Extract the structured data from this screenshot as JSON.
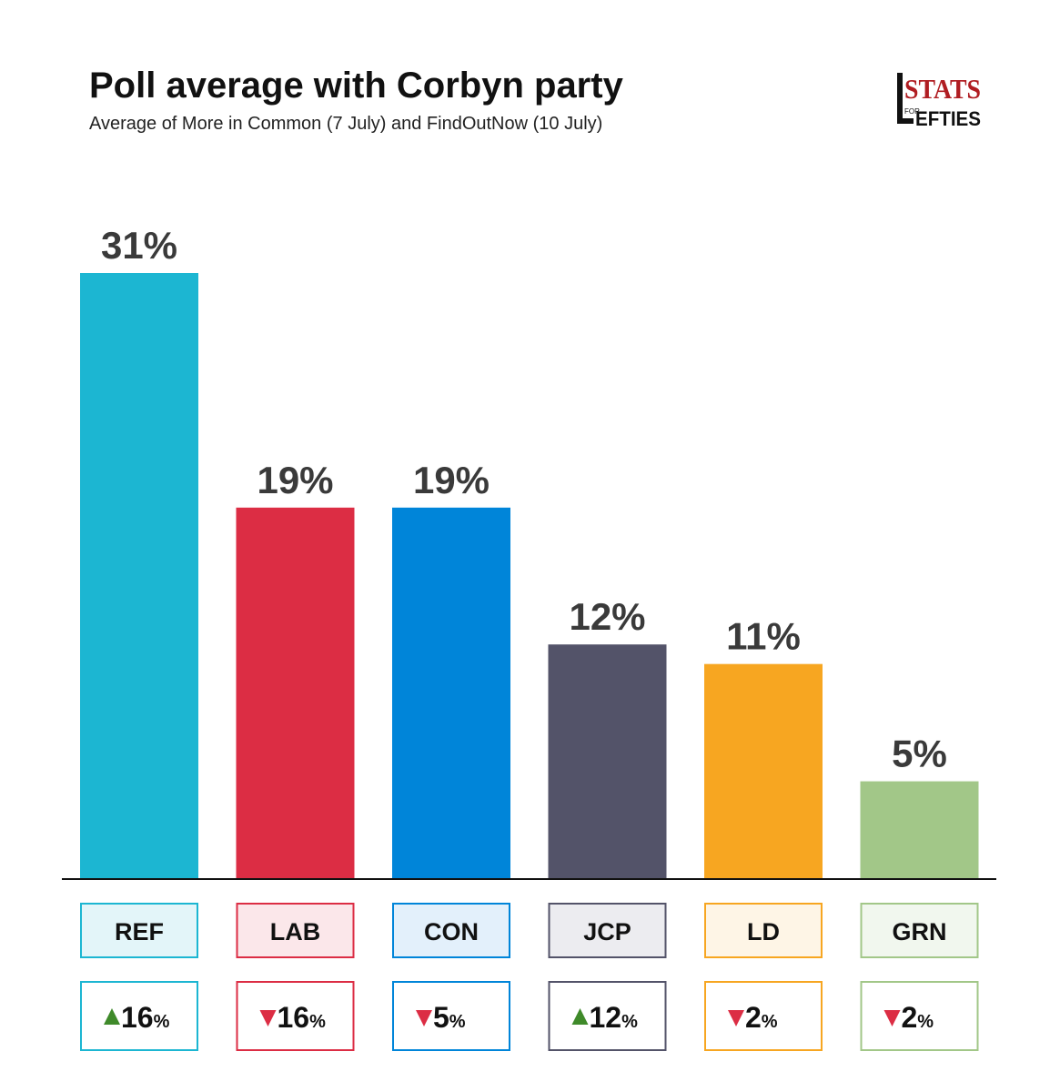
{
  "header": {
    "title": "Poll average with Corbyn party",
    "subtitle": "Average of More in Common (7 July) and FindOutNow (10 July)"
  },
  "logo": {
    "text_top": "STATS",
    "text_small": "FOR",
    "text_bottom": "EFTIES",
    "color_red": "#b01d22",
    "color_dark": "#111111"
  },
  "chart_data": {
    "type": "bar",
    "categories": [
      "REF",
      "LAB",
      "CON",
      "JCP",
      "LD",
      "GRN"
    ],
    "values": [
      31,
      19,
      19,
      12,
      11,
      5
    ],
    "value_labels": [
      "31%",
      "19%",
      "19%",
      "12%",
      "11%",
      "5%"
    ],
    "colors": [
      "#1cb6d2",
      "#dc2d44",
      "#0085d9",
      "#535369",
      "#f7a621",
      "#a2c788"
    ],
    "category_fill_colors": [
      "#e3f5f9",
      "#fbe7ea",
      "#e3f0fb",
      "#ececf0",
      "#fef5e6",
      "#f1f7ee"
    ],
    "changes": [
      {
        "direction": "up",
        "value": "16",
        "unit": "%"
      },
      {
        "direction": "down",
        "value": "16",
        "unit": "%"
      },
      {
        "direction": "down",
        "value": "5",
        "unit": "%"
      },
      {
        "direction": "up",
        "value": "12",
        "unit": "%"
      },
      {
        "direction": "down",
        "value": "2",
        "unit": "%"
      },
      {
        "direction": "down",
        "value": "2",
        "unit": "%"
      }
    ],
    "up_color": "#3f8a2a",
    "down_color": "#dc2d44",
    "ylim": [
      0,
      31
    ]
  }
}
